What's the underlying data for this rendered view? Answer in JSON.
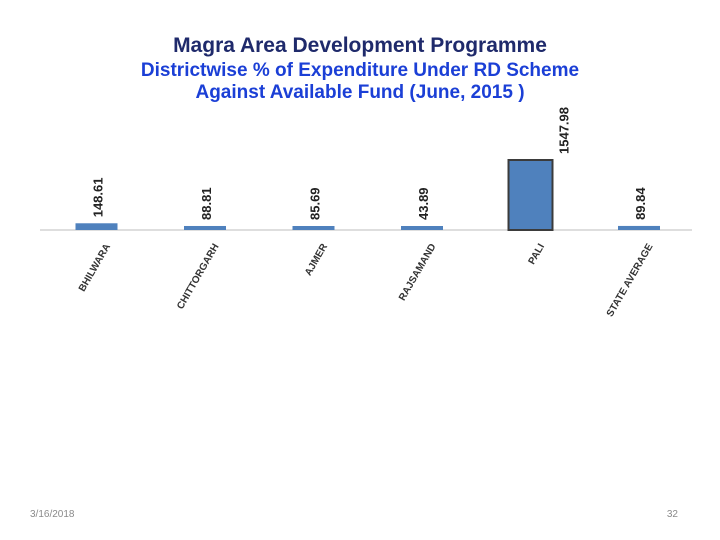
{
  "slide": {
    "title_lines": [
      "Magra Area Development Programme",
      "Districtwise % of Expenditure  Under RD Scheme",
      "Against  Available Fund (June, 2015 )"
    ],
    "footer_date": "3/16/2018",
    "page_number": "32"
  },
  "colors": {
    "bar": "#4f81bd",
    "highlight_border": "#3b3b3b",
    "axis": "#bdbdbd",
    "title_dark": "#1f2a6b",
    "title_blue": "#1b3fd6"
  },
  "chart_data": {
    "type": "bar",
    "title": "Magra Area Development Programme - Districtwise % of Expenditure Under RD Scheme Against Available Fund (June, 2015 )",
    "categories": [
      "BHILWARA",
      "CHITTORGARH",
      "AJMER",
      "RAJSAMAND",
      "PALI",
      "STATE AVERAGE"
    ],
    "values": [
      148.61,
      88.81,
      85.69,
      43.89,
      1547.98,
      89.84
    ],
    "labels": [
      "148.61",
      "88.81",
      "85.69",
      "43.89",
      "1547.98",
      "89.84"
    ],
    "highlighted_category": "PALI",
    "xlabel": "",
    "ylabel": "",
    "ylim": [
      0,
      1600
    ],
    "grid": false,
    "legend": "none"
  }
}
